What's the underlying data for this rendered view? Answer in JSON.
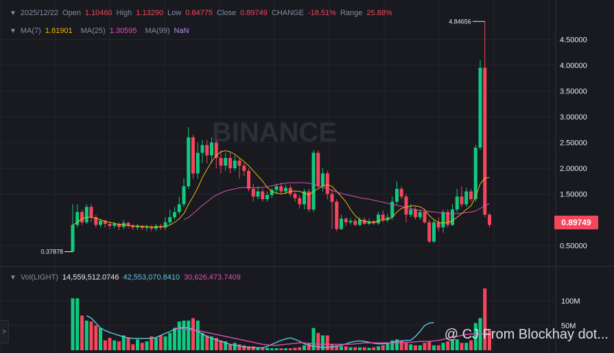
{
  "header": {
    "date": "2025/12/22",
    "open_label": "Open",
    "open": "1.10460",
    "high_label": "High",
    "high": "1.13290",
    "low_label": "Low",
    "low": "0.84775",
    "close_label": "Close",
    "close": "0.89749",
    "change_label": "CHANGE",
    "change": "-18.51%",
    "range_label": "Range",
    "range": "25.88%"
  },
  "ma_row": {
    "ma7_label": "MA(7)",
    "ma7": "1.81901",
    "ma25_label": "MA(25)",
    "ma25": "1.30595",
    "ma99_label": "MA(99)",
    "ma99": "NaN"
  },
  "vol_row": {
    "label": "Vol(LIGHT)",
    "v1": "14,559,512.0746",
    "v2": "42,553,070.8410",
    "v3": "30,626,473.7409"
  },
  "price_tag": "0.89749",
  "watermark": "BINANCE",
  "footer_watermark": "@ CJ From Blockhay dot...",
  "side_tab": ">",
  "colors": {
    "up": "#0ecb81",
    "down": "#f6465d",
    "ma7": "#f0b90b",
    "ma25": "#e04fb3",
    "vol_ma1": "#e04fb3",
    "vol_ma2": "#5fc9e0",
    "ma99": "#b38cf5"
  },
  "chart_data": {
    "type": "candlestick",
    "y_axis_labels": [
      "4.50000",
      "4.00000",
      "3.50000",
      "3.00000",
      "2.50000",
      "2.00000",
      "1.50000",
      "0.50000"
    ],
    "y_ticks": [
      4.5,
      4.0,
      3.5,
      3.0,
      2.5,
      2.0,
      1.5,
      0.5
    ],
    "ylim": [
      0.2,
      5.0
    ],
    "high_marker": "4.84656",
    "low_marker": "0.37878",
    "candles": [
      [
        0.38,
        0.9,
        0.38,
        1.3
      ],
      [
        0.9,
        1.15,
        0.85,
        1.3
      ],
      [
        1.15,
        0.95,
        0.9,
        1.2
      ],
      [
        0.95,
        1.25,
        0.92,
        1.3
      ],
      [
        1.25,
        1.05,
        0.95,
        1.3
      ],
      [
        1.05,
        0.9,
        0.85,
        1.1
      ],
      [
        0.9,
        0.98,
        0.85,
        1.02
      ],
      [
        0.98,
        0.92,
        0.85,
        1.0
      ],
      [
        0.92,
        0.88,
        0.82,
        0.95
      ],
      [
        0.88,
        0.92,
        0.83,
        0.96
      ],
      [
        0.92,
        0.86,
        0.8,
        0.95
      ],
      [
        0.86,
        0.94,
        0.82,
        1.0
      ],
      [
        0.94,
        0.88,
        0.83,
        0.97
      ],
      [
        0.88,
        0.85,
        0.8,
        0.92
      ],
      [
        0.85,
        0.88,
        0.8,
        0.92
      ],
      [
        0.88,
        0.84,
        0.8,
        0.9
      ],
      [
        0.84,
        0.86,
        0.78,
        0.9
      ],
      [
        0.86,
        0.83,
        0.78,
        0.9
      ],
      [
        0.83,
        0.88,
        0.78,
        0.92
      ],
      [
        0.88,
        0.85,
        0.8,
        0.92
      ],
      [
        0.85,
        0.95,
        0.8,
        1.05
      ],
      [
        0.95,
        1.05,
        0.9,
        1.2
      ],
      [
        1.05,
        1.15,
        1.0,
        1.25
      ],
      [
        1.15,
        1.3,
        1.1,
        1.45
      ],
      [
        1.3,
        1.65,
        1.25,
        1.8
      ],
      [
        1.65,
        2.6,
        1.6,
        2.8
      ],
      [
        2.6,
        1.9,
        1.8,
        2.65
      ],
      [
        1.9,
        2.3,
        1.8,
        2.5
      ],
      [
        2.3,
        2.45,
        2.1,
        2.55
      ],
      [
        2.45,
        2.25,
        2.1,
        2.55
      ],
      [
        2.25,
        2.5,
        2.1,
        2.6
      ],
      [
        2.5,
        2.2,
        2.0,
        2.55
      ],
      [
        2.2,
        2.05,
        1.9,
        2.35
      ],
      [
        2.05,
        2.2,
        1.95,
        2.3
      ],
      [
        2.2,
        2.0,
        1.9,
        2.3
      ],
      [
        2.0,
        2.15,
        1.95,
        2.25
      ],
      [
        2.15,
        2.05,
        1.8,
        2.2
      ],
      [
        2.05,
        1.95,
        1.85,
        2.1
      ],
      [
        1.95,
        1.6,
        1.55,
        2.0
      ],
      [
        1.6,
        1.45,
        1.35,
        1.7
      ],
      [
        1.45,
        1.55,
        1.4,
        1.65
      ],
      [
        1.55,
        1.4,
        1.35,
        1.6
      ],
      [
        1.4,
        1.48,
        1.35,
        1.55
      ],
      [
        1.48,
        1.58,
        1.42,
        1.62
      ],
      [
        1.58,
        1.65,
        1.5,
        1.7
      ],
      [
        1.65,
        1.55,
        1.5,
        1.72
      ],
      [
        1.55,
        1.62,
        1.5,
        1.68
      ],
      [
        1.62,
        1.5,
        1.45,
        1.68
      ],
      [
        1.5,
        1.42,
        1.35,
        1.55
      ],
      [
        1.42,
        1.3,
        1.22,
        1.48
      ],
      [
        1.3,
        1.55,
        1.2,
        1.6
      ],
      [
        1.55,
        1.2,
        1.15,
        1.6
      ],
      [
        1.2,
        2.3,
        1.15,
        2.35
      ],
      [
        2.3,
        1.65,
        1.6,
        2.35
      ],
      [
        1.65,
        1.9,
        1.55,
        2.0
      ],
      [
        1.9,
        1.5,
        1.4,
        1.95
      ],
      [
        1.5,
        1.35,
        0.82,
        1.6
      ],
      [
        1.35,
        0.82,
        0.78,
        1.4
      ],
      [
        0.82,
        1.02,
        0.8,
        1.1
      ],
      [
        1.02,
        0.95,
        0.88,
        1.05
      ],
      [
        0.95,
        0.98,
        0.9,
        1.03
      ],
      [
        0.98,
        0.9,
        0.88,
        1.02
      ],
      [
        0.9,
        1.0,
        0.88,
        1.05
      ],
      [
        1.0,
        0.92,
        0.9,
        1.05
      ],
      [
        0.92,
        0.97,
        0.9,
        1.03
      ],
      [
        0.97,
        0.93,
        0.9,
        1.0
      ],
      [
        0.93,
        1.1,
        0.9,
        1.15
      ],
      [
        1.1,
        1.0,
        0.95,
        1.18
      ],
      [
        1.0,
        1.05,
        0.95,
        1.12
      ],
      [
        1.05,
        1.35,
        1.0,
        1.45
      ],
      [
        1.35,
        1.6,
        1.3,
        1.75
      ],
      [
        1.6,
        1.45,
        1.4,
        1.65
      ],
      [
        1.45,
        1.1,
        0.95,
        1.5
      ],
      [
        1.1,
        1.2,
        1.05,
        1.3
      ],
      [
        1.2,
        1.05,
        1.0,
        1.25
      ],
      [
        1.05,
        1.15,
        1.0,
        1.2
      ],
      [
        1.15,
        0.95,
        0.92,
        1.2
      ],
      [
        0.95,
        0.58,
        0.55,
        1.0
      ],
      [
        0.58,
        0.95,
        0.55,
        1.0
      ],
      [
        0.95,
        0.85,
        0.78,
        1.05
      ],
      [
        0.85,
        1.15,
        0.75,
        1.2
      ],
      [
        1.15,
        0.9,
        0.85,
        1.2
      ],
      [
        0.9,
        1.2,
        0.88,
        1.3
      ],
      [
        1.2,
        1.45,
        1.15,
        1.6
      ],
      [
        1.45,
        1.3,
        1.25,
        1.65
      ],
      [
        1.3,
        1.55,
        1.25,
        1.62
      ],
      [
        1.55,
        1.4,
        1.35,
        1.6
      ],
      [
        1.4,
        2.4,
        1.35,
        2.45
      ],
      [
        2.4,
        3.95,
        2.35,
        4.1
      ],
      [
        3.95,
        1.1,
        1.05,
        4.85
      ],
      [
        1.1,
        0.9,
        0.85,
        1.13
      ]
    ],
    "ma7": [
      0.9,
      0.95,
      1.02,
      1.05,
      1.05,
      1.03,
      1.0,
      0.97,
      0.95,
      0.93,
      0.91,
      0.9,
      0.89,
      0.88,
      0.88,
      0.87,
      0.87,
      0.86,
      0.86,
      0.86,
      0.87,
      0.9,
      0.95,
      1.02,
      1.12,
      1.3,
      1.45,
      1.62,
      1.82,
      1.98,
      2.13,
      2.25,
      2.32,
      2.34,
      2.32,
      2.27,
      2.2,
      2.13,
      2.05,
      1.95,
      1.85,
      1.75,
      1.63,
      1.55,
      1.52,
      1.5,
      1.52,
      1.55,
      1.56,
      1.55,
      1.52,
      1.48,
      1.55,
      1.6,
      1.65,
      1.68,
      1.65,
      1.55,
      1.45,
      1.35,
      1.2,
      1.08,
      1.0,
      0.97,
      0.96,
      0.95,
      0.98,
      1.0,
      1.0,
      1.05,
      1.15,
      1.22,
      1.25,
      1.27,
      1.27,
      1.25,
      1.2,
      1.08,
      1.0,
      0.95,
      0.93,
      0.95,
      0.98,
      1.05,
      1.12,
      1.2,
      1.27,
      1.45,
      1.7,
      1.81,
      1.82
    ],
    "ma25_start": 24,
    "ma25": [
      1.0,
      1.05,
      1.12,
      1.2,
      1.28,
      1.35,
      1.42,
      1.48,
      1.52,
      1.56,
      1.58,
      1.6,
      1.62,
      1.63,
      1.63,
      1.62,
      1.62,
      1.63,
      1.64,
      1.66,
      1.68,
      1.7,
      1.71,
      1.72,
      1.72,
      1.72,
      1.72,
      1.71,
      1.69,
      1.66,
      1.63,
      1.6,
      1.57,
      1.54,
      1.51,
      1.49,
      1.47,
      1.45,
      1.43,
      1.41,
      1.4,
      1.38,
      1.36,
      1.34,
      1.32,
      1.3,
      1.28,
      1.26,
      1.24,
      1.22,
      1.2,
      1.18,
      1.17,
      1.16,
      1.15,
      1.14,
      1.13,
      1.12,
      1.12,
      1.12,
      1.13,
      1.14,
      1.15,
      1.17,
      1.22,
      1.28,
      1.31
    ],
    "volume_axis_labels": [
      "100M",
      "50M"
    ],
    "volume_ticks": [
      100,
      50
    ],
    "volume_max": 125,
    "volumes": [
      105,
      105,
      70,
      60,
      58,
      50,
      45,
      20,
      25,
      20,
      18,
      30,
      25,
      12,
      22,
      15,
      18,
      28,
      25,
      30,
      28,
      35,
      45,
      58,
      60,
      60,
      65,
      60,
      35,
      30,
      28,
      25,
      20,
      18,
      12,
      15,
      12,
      10,
      8,
      8,
      6,
      5,
      5,
      4,
      4,
      4,
      4,
      4,
      5,
      6,
      10,
      15,
      45,
      35,
      30,
      30,
      12,
      10,
      8,
      8,
      6,
      6,
      6,
      6,
      5,
      6,
      8,
      10,
      15,
      20,
      22,
      20,
      15,
      12,
      10,
      10,
      15,
      18,
      10,
      10,
      15,
      18,
      20,
      22,
      15,
      15,
      20,
      55,
      65,
      125,
      40
    ],
    "vol_ma_a_start": 3,
    "vol_ma_a": [
      70,
      65,
      55,
      45,
      40,
      36,
      33,
      30,
      27,
      25,
      24,
      24,
      24,
      24,
      24,
      26,
      30,
      34,
      38,
      42,
      45,
      46,
      45,
      42,
      38,
      33,
      28,
      24,
      21,
      18,
      15,
      12,
      10,
      8,
      7,
      6,
      5,
      5,
      5,
      8,
      12,
      16,
      20,
      23,
      25,
      22,
      18,
      13,
      10,
      8,
      7,
      6,
      6,
      7,
      8,
      10,
      13,
      16,
      18,
      19,
      18,
      16,
      14,
      13,
      13,
      14,
      16,
      18,
      19,
      20,
      20,
      28,
      38,
      50,
      55,
      56
    ],
    "vol_ma_b_start": 22,
    "vol_ma_b": [
      45,
      44,
      43,
      42,
      41,
      40,
      38,
      36,
      34,
      32,
      30,
      28,
      26,
      24,
      22,
      20,
      18,
      16,
      14,
      12,
      11,
      10,
      10,
      11,
      12,
      13,
      14,
      15,
      15,
      14,
      13,
      12,
      12,
      12,
      12,
      12,
      12,
      12,
      12,
      13,
      14,
      15,
      15,
      15,
      15,
      15,
      15,
      15,
      15,
      15,
      16,
      16,
      17,
      18,
      18,
      18,
      19,
      20,
      22,
      24,
      26,
      28,
      30,
      32,
      33,
      33,
      33,
      33,
      33
    ]
  }
}
